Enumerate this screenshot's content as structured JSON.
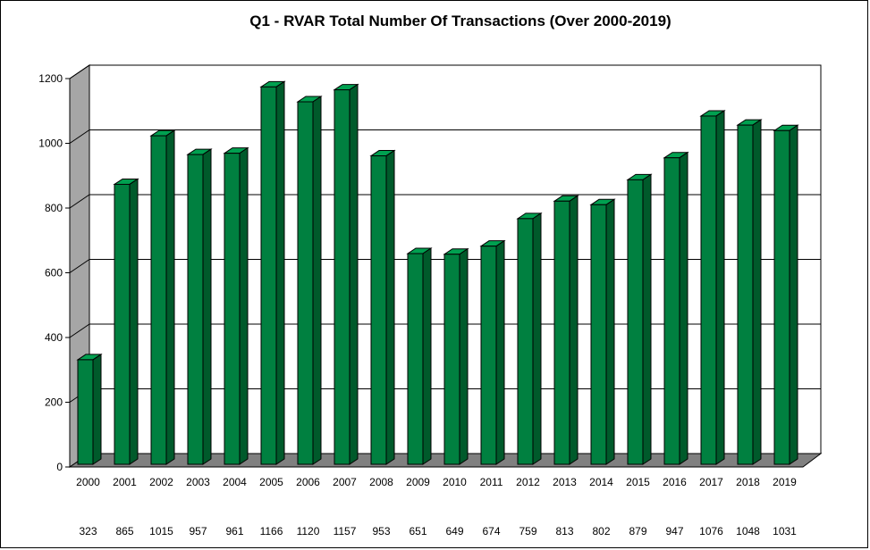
{
  "chart_data": {
    "type": "bar",
    "title": "Q1 - RVAR  Total Number Of Transactions (Over 2000-2019)",
    "xlabel": "",
    "ylabel": "",
    "ylim": [
      0,
      1200
    ],
    "yticks": [
      "0",
      "200",
      "400",
      "600",
      "800",
      "1000",
      "1200"
    ],
    "categories": [
      "2000",
      "2001",
      "2002",
      "2003",
      "2004",
      "2005",
      "2006",
      "2007",
      "2008",
      "2009",
      "2010",
      "2011",
      "2012",
      "2013",
      "2014",
      "2015",
      "2016",
      "2017",
      "2018",
      "2019"
    ],
    "values": [
      323,
      865,
      1015,
      957,
      961,
      1166,
      1120,
      1157,
      953,
      651,
      649,
      674,
      759,
      813,
      802,
      879,
      947,
      1076,
      1048,
      1031
    ],
    "value_labels": [
      "323",
      "865",
      "1015",
      "957",
      "961",
      "1166",
      "1120",
      "1157",
      "953",
      "651",
      "649",
      "674",
      "759",
      "813",
      "802",
      "879",
      "947",
      "1076",
      "1048",
      "1031"
    ],
    "grid": true,
    "legend": "none",
    "colors": {
      "bar_front": "#008040",
      "bar_side": "#005a2b",
      "bar_top": "#00a050",
      "wall": "#a6a6a6",
      "floor": "#808080",
      "gridline": "#000000"
    }
  }
}
